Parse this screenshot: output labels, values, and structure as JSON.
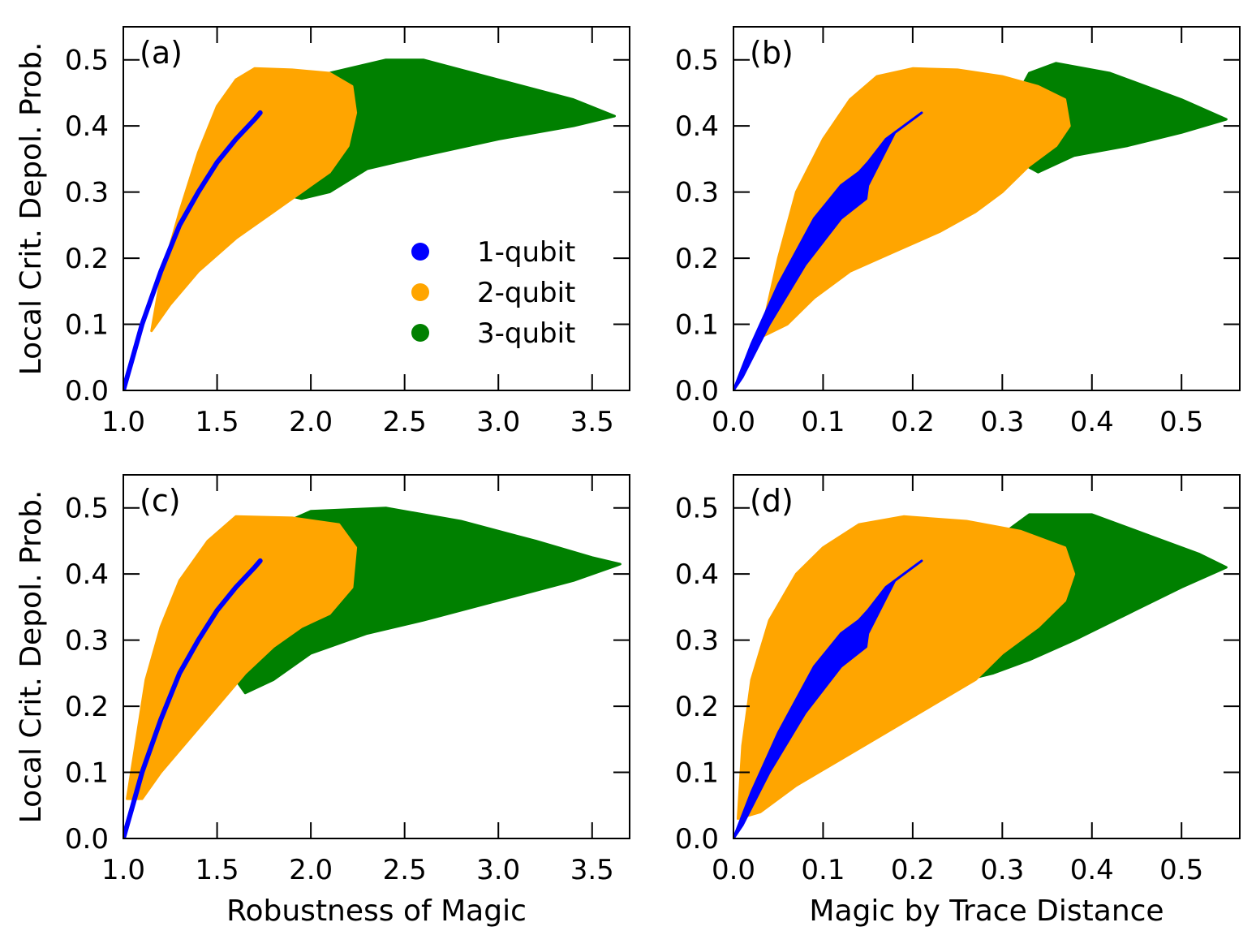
{
  "figure": {
    "ylabel": "Local Crit. Depol. Prob.",
    "legend": [
      {
        "label": "1-qubit",
        "color": "#0000ff"
      },
      {
        "label": "2-qubit",
        "color": "#ffa500"
      },
      {
        "label": "3-qubit",
        "color": "#008000"
      }
    ]
  },
  "chart_data": [
    {
      "type": "scatter",
      "panel_label": "(a)",
      "xlabel": "",
      "ylabel": "Local Crit. Depol. Prob.",
      "xlim": [
        1.0,
        3.7
      ],
      "ylim": [
        0.0,
        0.55
      ],
      "xticks": [
        "1.0",
        "1.5",
        "2.0",
        "2.5",
        "3.0",
        "3.5"
      ],
      "xtick_values": [
        1.0,
        1.5,
        2.0,
        2.5,
        3.0,
        3.5
      ],
      "yticks": [
        "0.0",
        "0.1",
        "0.2",
        "0.3",
        "0.4",
        "0.5"
      ],
      "ytick_values": [
        0.0,
        0.1,
        0.2,
        0.3,
        0.4,
        0.5
      ],
      "legend_position": "center-right",
      "series": [
        {
          "name": "3-qubit",
          "color": "#008000",
          "region": [
            [
              1.6,
              0.31
            ],
            [
              1.75,
              0.4
            ],
            [
              1.9,
              0.45
            ],
            [
              2.1,
              0.48
            ],
            [
              2.4,
              0.5
            ],
            [
              2.6,
              0.5
            ],
            [
              3.0,
              0.47
            ],
            [
              3.4,
              0.44
            ],
            [
              3.62,
              0.415
            ],
            [
              3.4,
              0.4
            ],
            [
              3.0,
              0.38
            ],
            [
              2.6,
              0.355
            ],
            [
              2.3,
              0.335
            ],
            [
              2.1,
              0.3
            ],
            [
              1.95,
              0.29
            ],
            [
              1.8,
              0.3
            ]
          ]
        },
        {
          "name": "2-qubit",
          "color": "#ffa500",
          "region": [
            [
              1.15,
              0.09
            ],
            [
              1.2,
              0.17
            ],
            [
              1.3,
              0.27
            ],
            [
              1.4,
              0.36
            ],
            [
              1.5,
              0.43
            ],
            [
              1.6,
              0.47
            ],
            [
              1.7,
              0.487
            ],
            [
              1.9,
              0.485
            ],
            [
              2.1,
              0.48
            ],
            [
              2.22,
              0.46
            ],
            [
              2.24,
              0.42
            ],
            [
              2.2,
              0.37
            ],
            [
              2.1,
              0.33
            ],
            [
              1.95,
              0.3
            ],
            [
              1.8,
              0.27
            ],
            [
              1.6,
              0.23
            ],
            [
              1.4,
              0.18
            ],
            [
              1.25,
              0.13
            ]
          ]
        },
        {
          "name": "1-qubit",
          "color": "#0000ff",
          "curve": [
            [
              1.0,
              0.0
            ],
            [
              1.05,
              0.05
            ],
            [
              1.1,
              0.1
            ],
            [
              1.2,
              0.18
            ],
            [
              1.3,
              0.25
            ],
            [
              1.4,
              0.3
            ],
            [
              1.5,
              0.345
            ],
            [
              1.6,
              0.38
            ],
            [
              1.7,
              0.41
            ],
            [
              1.73,
              0.42
            ]
          ],
          "width": 0.005
        }
      ]
    },
    {
      "type": "scatter",
      "panel_label": "(b)",
      "xlabel": "",
      "ylabel": "",
      "xlim": [
        0.0,
        0.565
      ],
      "ylim": [
        0.0,
        0.55
      ],
      "xticks": [
        "0.0",
        "0.1",
        "0.2",
        "0.3",
        "0.4",
        "0.5"
      ],
      "xtick_values": [
        0.0,
        0.1,
        0.2,
        0.3,
        0.4,
        0.5
      ],
      "yticks": [
        "0.0",
        "0.1",
        "0.2",
        "0.3",
        "0.4",
        "0.5"
      ],
      "ytick_values": [
        0.0,
        0.1,
        0.2,
        0.3,
        0.4,
        0.5
      ],
      "series": [
        {
          "name": "3-qubit",
          "color": "#008000",
          "region": [
            [
              0.3,
              0.36
            ],
            [
              0.31,
              0.43
            ],
            [
              0.33,
              0.48
            ],
            [
              0.36,
              0.495
            ],
            [
              0.42,
              0.48
            ],
            [
              0.5,
              0.44
            ],
            [
              0.55,
              0.41
            ],
            [
              0.5,
              0.39
            ],
            [
              0.44,
              0.37
            ],
            [
              0.38,
              0.355
            ],
            [
              0.34,
              0.33
            ]
          ]
        },
        {
          "name": "2-qubit",
          "color": "#ffa500",
          "region": [
            [
              0.03,
              0.08
            ],
            [
              0.05,
              0.2
            ],
            [
              0.07,
              0.3
            ],
            [
              0.1,
              0.38
            ],
            [
              0.13,
              0.44
            ],
            [
              0.16,
              0.475
            ],
            [
              0.2,
              0.487
            ],
            [
              0.25,
              0.485
            ],
            [
              0.3,
              0.475
            ],
            [
              0.34,
              0.46
            ],
            [
              0.37,
              0.44
            ],
            [
              0.375,
              0.4
            ],
            [
              0.36,
              0.37
            ],
            [
              0.33,
              0.34
            ],
            [
              0.3,
              0.3
            ],
            [
              0.27,
              0.27
            ],
            [
              0.23,
              0.24
            ],
            [
              0.18,
              0.21
            ],
            [
              0.13,
              0.18
            ],
            [
              0.09,
              0.14
            ],
            [
              0.06,
              0.1
            ]
          ]
        },
        {
          "name": "1-qubit",
          "color": "#0000ff",
          "region": [
            [
              0.0,
              0.0
            ],
            [
              0.02,
              0.07
            ],
            [
              0.05,
              0.16
            ],
            [
              0.09,
              0.26
            ],
            [
              0.12,
              0.31
            ],
            [
              0.14,
              0.33
            ],
            [
              0.15,
              0.345
            ],
            [
              0.17,
              0.38
            ],
            [
              0.21,
              0.42
            ],
            [
              0.18,
              0.39
            ],
            [
              0.15,
              0.31
            ],
            [
              0.148,
              0.29
            ],
            [
              0.12,
              0.26
            ],
            [
              0.08,
              0.19
            ],
            [
              0.04,
              0.1
            ],
            [
              0.01,
              0.02
            ]
          ]
        }
      ]
    },
    {
      "type": "scatter",
      "panel_label": "(c)",
      "xlabel": "Robustness of Magic",
      "ylabel": "Local Crit. Depol. Prob.",
      "xlim": [
        1.0,
        3.7
      ],
      "ylim": [
        0.0,
        0.55
      ],
      "xticks": [
        "1.0",
        "1.5",
        "2.0",
        "2.5",
        "3.0",
        "3.5"
      ],
      "xtick_values": [
        1.0,
        1.5,
        2.0,
        2.5,
        3.0,
        3.5
      ],
      "yticks": [
        "0.0",
        "0.1",
        "0.2",
        "0.3",
        "0.4",
        "0.5"
      ],
      "ytick_values": [
        0.0,
        0.1,
        0.2,
        0.3,
        0.4,
        0.5
      ],
      "series": [
        {
          "name": "3-qubit",
          "color": "#008000",
          "region": [
            [
              1.6,
              0.24
            ],
            [
              1.7,
              0.4
            ],
            [
              1.8,
              0.47
            ],
            [
              2.0,
              0.495
            ],
            [
              2.4,
              0.5
            ],
            [
              2.8,
              0.48
            ],
            [
              3.2,
              0.45
            ],
            [
              3.5,
              0.425
            ],
            [
              3.65,
              0.415
            ],
            [
              3.4,
              0.39
            ],
            [
              3.0,
              0.36
            ],
            [
              2.6,
              0.33
            ],
            [
              2.3,
              0.31
            ],
            [
              2.0,
              0.28
            ],
            [
              1.8,
              0.24
            ],
            [
              1.65,
              0.22
            ]
          ]
        },
        {
          "name": "2-qubit",
          "color": "#ffa500",
          "region": [
            [
              1.02,
              0.06
            ],
            [
              1.07,
              0.15
            ],
            [
              1.12,
              0.24
            ],
            [
              1.2,
              0.32
            ],
            [
              1.3,
              0.39
            ],
            [
              1.45,
              0.45
            ],
            [
              1.6,
              0.487
            ],
            [
              1.9,
              0.485
            ],
            [
              2.15,
              0.475
            ],
            [
              2.24,
              0.44
            ],
            [
              2.22,
              0.38
            ],
            [
              2.1,
              0.34
            ],
            [
              1.95,
              0.32
            ],
            [
              1.8,
              0.29
            ],
            [
              1.65,
              0.25
            ],
            [
              1.5,
              0.2
            ],
            [
              1.35,
              0.15
            ],
            [
              1.2,
              0.1
            ],
            [
              1.1,
              0.06
            ]
          ]
        },
        {
          "name": "1-qubit",
          "color": "#0000ff",
          "curve": [
            [
              1.0,
              0.0
            ],
            [
              1.05,
              0.05
            ],
            [
              1.1,
              0.1
            ],
            [
              1.2,
              0.18
            ],
            [
              1.3,
              0.25
            ],
            [
              1.4,
              0.3
            ],
            [
              1.5,
              0.345
            ],
            [
              1.6,
              0.38
            ],
            [
              1.7,
              0.41
            ],
            [
              1.73,
              0.42
            ]
          ],
          "width": 0.005
        }
      ]
    },
    {
      "type": "scatter",
      "panel_label": "(d)",
      "xlabel": "Magic by Trace Distance",
      "ylabel": "",
      "xlim": [
        0.0,
        0.565
      ],
      "ylim": [
        0.0,
        0.55
      ],
      "xticks": [
        "0.0",
        "0.1",
        "0.2",
        "0.3",
        "0.4",
        "0.5"
      ],
      "xtick_values": [
        0.0,
        0.1,
        0.2,
        0.3,
        0.4,
        0.5
      ],
      "yticks": [
        "0.0",
        "0.1",
        "0.2",
        "0.3",
        "0.4",
        "0.5"
      ],
      "ytick_values": [
        0.0,
        0.1,
        0.2,
        0.3,
        0.4,
        0.5
      ],
      "series": [
        {
          "name": "3-qubit",
          "color": "#008000",
          "region": [
            [
              0.26,
              0.24
            ],
            [
              0.27,
              0.36
            ],
            [
              0.29,
              0.45
            ],
            [
              0.33,
              0.49
            ],
            [
              0.4,
              0.49
            ],
            [
              0.46,
              0.46
            ],
            [
              0.52,
              0.43
            ],
            [
              0.55,
              0.41
            ],
            [
              0.5,
              0.38
            ],
            [
              0.44,
              0.34
            ],
            [
              0.38,
              0.3
            ],
            [
              0.33,
              0.27
            ],
            [
              0.29,
              0.25
            ]
          ]
        },
        {
          "name": "2-qubit",
          "color": "#ffa500",
          "region": [
            [
              0.005,
              0.03
            ],
            [
              0.01,
              0.14
            ],
            [
              0.02,
              0.24
            ],
            [
              0.04,
              0.33
            ],
            [
              0.07,
              0.4
            ],
            [
              0.1,
              0.44
            ],
            [
              0.14,
              0.475
            ],
            [
              0.19,
              0.487
            ],
            [
              0.26,
              0.48
            ],
            [
              0.32,
              0.465
            ],
            [
              0.37,
              0.44
            ],
            [
              0.38,
              0.4
            ],
            [
              0.37,
              0.36
            ],
            [
              0.34,
              0.32
            ],
            [
              0.3,
              0.28
            ],
            [
              0.27,
              0.24
            ],
            [
              0.22,
              0.2
            ],
            [
              0.17,
              0.16
            ],
            [
              0.12,
              0.12
            ],
            [
              0.07,
              0.08
            ],
            [
              0.03,
              0.04
            ]
          ]
        },
        {
          "name": "1-qubit",
          "color": "#0000ff",
          "region": [
            [
              0.0,
              0.0
            ],
            [
              0.02,
              0.07
            ],
            [
              0.05,
              0.16
            ],
            [
              0.09,
              0.26
            ],
            [
              0.12,
              0.31
            ],
            [
              0.14,
              0.33
            ],
            [
              0.15,
              0.345
            ],
            [
              0.17,
              0.38
            ],
            [
              0.21,
              0.42
            ],
            [
              0.18,
              0.39
            ],
            [
              0.15,
              0.31
            ],
            [
              0.148,
              0.29
            ],
            [
              0.12,
              0.26
            ],
            [
              0.08,
              0.19
            ],
            [
              0.04,
              0.1
            ],
            [
              0.01,
              0.02
            ]
          ]
        }
      ]
    }
  ]
}
